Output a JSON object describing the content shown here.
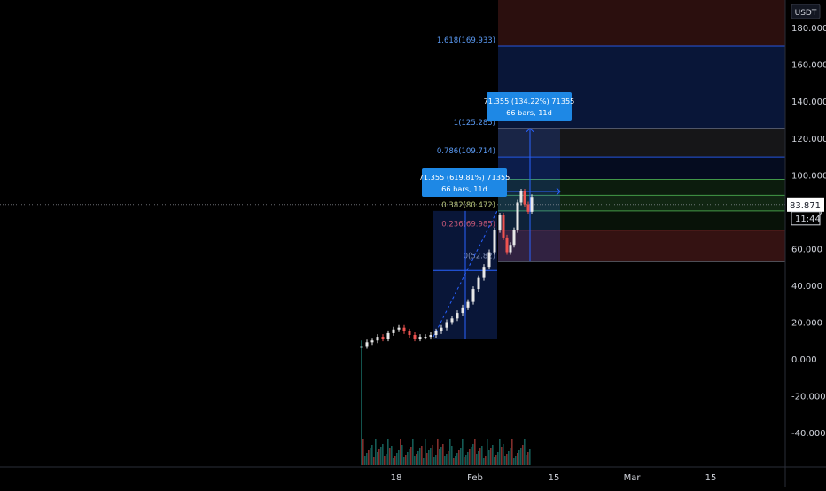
{
  "currency": "USDT",
  "chart_data": {
    "type": "candlestick",
    "y_axis": {
      "ticks": [
        "180.000",
        "160.000",
        "140.000",
        "120.000",
        "100.000",
        "80.000",
        "60.000",
        "40.000",
        "20.000",
        "0.000",
        "-20.000",
        "-40.000"
      ],
      "tick_values": [
        180,
        160,
        140,
        120,
        100,
        80,
        60,
        40,
        20,
        0,
        -20,
        -40
      ],
      "range": [
        -57,
        205
      ]
    },
    "x_axis": {
      "ticks": [
        "18",
        "Feb",
        "15",
        "Mar",
        "15"
      ]
    },
    "last_price": {
      "value": 83.871,
      "label": "83.871",
      "countdown": "11:44"
    },
    "fib_levels_right": [
      {
        "ratio": 1.618,
        "label": "1.618(169.933)",
        "value": 169.933
      },
      {
        "ratio": 1,
        "label": "1(125.285)",
        "value": 125.285
      },
      {
        "ratio": 0.786,
        "label": "0.786(109.714)",
        "value": 109.714
      },
      {
        "ratio": 0.618,
        "label": "",
        "value": 97.5
      },
      {
        "ratio": 0.5,
        "label": "",
        "value": 88.9
      },
      {
        "ratio": 0.382,
        "label": "0.382(80.472)",
        "value": 80.472
      },
      {
        "ratio": 0.236,
        "label": "0.236(69.985)",
        "value": 69.985
      },
      {
        "ratio": 0,
        "label": "0(52.82)",
        "value": 52.82
      }
    ],
    "measure_boxes": [
      {
        "line1": "71.355 (619.81%) 71355",
        "line2": "66 bars, 11d"
      },
      {
        "line1": "71.355 (134.22%) 71355",
        "line2": "66 bars, 11d"
      }
    ],
    "price_series_approx": [
      {
        "t": 0,
        "v": 7
      },
      {
        "t": 6,
        "v": 9
      },
      {
        "t": 12,
        "v": 10
      },
      {
        "t": 18,
        "v": 12
      },
      {
        "t": 24,
        "v": 11
      },
      {
        "t": 30,
        "v": 14
      },
      {
        "t": 36,
        "v": 16
      },
      {
        "t": 42,
        "v": 17
      },
      {
        "t": 48,
        "v": 15
      },
      {
        "t": 54,
        "v": 13
      },
      {
        "t": 60,
        "v": 11
      },
      {
        "t": 66,
        "v": 12
      },
      {
        "t": 72,
        "v": 12
      },
      {
        "t": 78,
        "v": 13
      },
      {
        "t": 84,
        "v": 15
      },
      {
        "t": 90,
        "v": 17
      },
      {
        "t": 96,
        "v": 20
      },
      {
        "t": 102,
        "v": 22
      },
      {
        "t": 108,
        "v": 25
      },
      {
        "t": 114,
        "v": 28
      },
      {
        "t": 120,
        "v": 31
      },
      {
        "t": 126,
        "v": 38
      },
      {
        "t": 132,
        "v": 44
      },
      {
        "t": 138,
        "v": 50
      },
      {
        "t": 144,
        "v": 58
      },
      {
        "t": 150,
        "v": 70
      },
      {
        "t": 156,
        "v": 78
      },
      {
        "t": 160,
        "v": 66
      },
      {
        "t": 164,
        "v": 58
      },
      {
        "t": 168,
        "v": 62
      },
      {
        "t": 172,
        "v": 70
      },
      {
        "t": 176,
        "v": 85
      },
      {
        "t": 180,
        "v": 91
      },
      {
        "t": 184,
        "v": 84
      },
      {
        "t": 188,
        "v": 80
      },
      {
        "t": 192,
        "v": 88
      }
    ],
    "colors": {
      "up": "#26a69a",
      "down": "#ef5350",
      "accent": "#2962ff",
      "label_bg": "#1e88e5"
    }
  }
}
